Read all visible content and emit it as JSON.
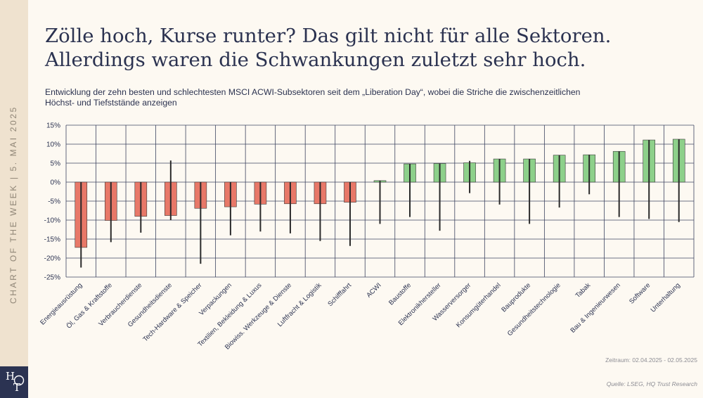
{
  "sidebar": {
    "label": "CHART OF THE WEEK | 5. MAI 2025",
    "logo_top": "H",
    "logo_bottom": "T"
  },
  "title_line1": "Zölle hoch, Kurse runter? Das gilt nicht für alle Sektoren.",
  "title_line2": "Allerdings waren die Schwankungen zuletzt sehr hoch.",
  "subtitle_line1": "Entwicklung der zehn besten und schlechtesten MSCI ACWI-Subsektoren seit dem „Liberation Day“, wobei die Striche die zwischenzeitlichen",
  "subtitle_line2": "Höchst- und Tiefststände anzeigen",
  "period": "Zeitraum: 02.04.2025 - 02.05.2025",
  "source": "Quelle: LSEG, HQ Trust Research",
  "colors": {
    "negative": "#e87868",
    "positive": "#8dd08a",
    "whisker": "#2a2a2a",
    "grid": "#3d4460"
  },
  "chart_data": {
    "type": "bar",
    "ylim": [
      -25,
      15
    ],
    "y_ticks": [
      15,
      10,
      5,
      0,
      -5,
      -10,
      -15,
      -20,
      -25
    ],
    "y_tick_labels": [
      "15%",
      "10%",
      "5%",
      "0%",
      "-5%",
      "-10%",
      "-15%",
      "-20%",
      "-25%"
    ],
    "grid": true,
    "categories": [
      "Energieausrüstung",
      "Öl, Gas & Kraftstoffe",
      "Verbraucherdienste",
      "Gesundheitsdienste",
      "Tech-Hardware & Speicher",
      "Verpackungen",
      "Textilien, Bekleidung & Luxus",
      "Biowiss. Werkzeuge & Dienste",
      "Luftfracht & Logistik",
      "Schifffahrt",
      "ACWI",
      "Baustoffe",
      "Elektronikhersteller",
      "Wasserversorger",
      "Konsumgüterhandel",
      "Bauprodukte",
      "Gesundheitstechnologie",
      "Tabak",
      "Bau & Ingenieurwesen",
      "Software",
      "Unterhaltung"
    ],
    "values": [
      -17.2,
      -10.1,
      -9.0,
      -8.8,
      -6.9,
      -6.5,
      -5.8,
      -5.7,
      -5.7,
      -5.3,
      0.4,
      4.8,
      4.9,
      5.1,
      6.1,
      6.1,
      7.1,
      7.2,
      8.1,
      11.1,
      11.3
    ],
    "highs": [
      0,
      0,
      0,
      5.7,
      0,
      0,
      0,
      0,
      0,
      0,
      0.4,
      4.8,
      4.9,
      5.6,
      6.1,
      6.1,
      7.1,
      7.2,
      8.1,
      11.1,
      11.3
    ],
    "lows": [
      -22.5,
      -15.8,
      -13.3,
      -10.0,
      -21.5,
      -14.0,
      -13.0,
      -13.5,
      -15.5,
      -16.8,
      -11.0,
      -9.2,
      -12.8,
      -2.9,
      -5.9,
      -11.0,
      -6.7,
      -3.2,
      -9.2,
      -9.7,
      -10.5
    ]
  }
}
